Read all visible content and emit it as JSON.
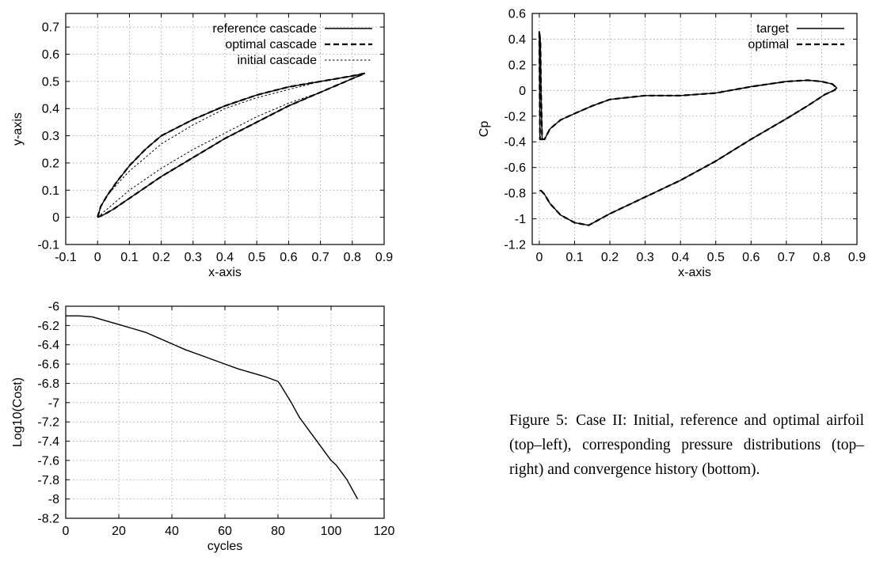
{
  "caption": {
    "label": "Figure 5:",
    "text": "Case II: Initial, reference and optimal airfoil (top–left), corresponding pressure distributions (top–right) and convergence history (bottom)."
  },
  "chart_data": [
    {
      "type": "line",
      "xlabel": "x-axis",
      "ylabel": "y-axis",
      "xlim": [
        -0.1,
        0.9
      ],
      "ylim": [
        -0.1,
        0.75
      ],
      "xticks": [
        "-0.1",
        "0",
        "0.1",
        "0.2",
        "0.3",
        "0.4",
        "0.5",
        "0.6",
        "0.7",
        "0.8",
        "0.9"
      ],
      "yticks": [
        "-0.1",
        "0",
        "0.1",
        "0.2",
        "0.3",
        "0.4",
        "0.5",
        "0.6",
        "0.7"
      ],
      "grid": true,
      "legend": "top-right",
      "series": [
        {
          "name": "reference cascade",
          "style": "solid",
          "upper": {
            "x": [
              0,
              0.01,
              0.03,
              0.06,
              0.1,
              0.15,
              0.2,
              0.3,
              0.4,
              0.5,
              0.6,
              0.7,
              0.8,
              0.84
            ],
            "y": [
              0,
              0.04,
              0.08,
              0.13,
              0.19,
              0.25,
              0.3,
              0.36,
              0.41,
              0.45,
              0.48,
              0.5,
              0.52,
              0.53
            ]
          },
          "lower": {
            "x": [
              0,
              0.02,
              0.05,
              0.1,
              0.15,
              0.2,
              0.3,
              0.4,
              0.5,
              0.6,
              0.7,
              0.8,
              0.84
            ],
            "y": [
              0,
              0.01,
              0.03,
              0.07,
              0.11,
              0.15,
              0.22,
              0.29,
              0.35,
              0.41,
              0.46,
              0.51,
              0.53
            ]
          }
        },
        {
          "name": "optimal  cascade",
          "style": "dashed",
          "upper": {
            "x": [
              0,
              0.01,
              0.03,
              0.06,
              0.1,
              0.15,
              0.2,
              0.3,
              0.4,
              0.5,
              0.6,
              0.7,
              0.8,
              0.84
            ],
            "y": [
              0,
              0.04,
              0.08,
              0.13,
              0.19,
              0.25,
              0.3,
              0.36,
              0.41,
              0.45,
              0.48,
              0.5,
              0.52,
              0.53
            ]
          },
          "lower": {
            "x": [
              0,
              0.02,
              0.05,
              0.1,
              0.15,
              0.2,
              0.3,
              0.4,
              0.5,
              0.6,
              0.7,
              0.8,
              0.84
            ],
            "y": [
              0,
              0.01,
              0.03,
              0.07,
              0.11,
              0.15,
              0.22,
              0.29,
              0.35,
              0.41,
              0.46,
              0.51,
              0.53
            ]
          }
        },
        {
          "name": "initial  cascade",
          "style": "dotted",
          "upper": {
            "x": [
              0,
              0.01,
              0.03,
              0.06,
              0.1,
              0.15,
              0.2,
              0.3,
              0.4,
              0.5,
              0.6,
              0.7,
              0.8,
              0.84
            ],
            "y": [
              0,
              0.04,
              0.08,
              0.12,
              0.17,
              0.22,
              0.27,
              0.34,
              0.4,
              0.44,
              0.47,
              0.5,
              0.52,
              0.53
            ]
          },
          "lower": {
            "x": [
              0,
              0.02,
              0.05,
              0.1,
              0.15,
              0.2,
              0.3,
              0.4,
              0.5,
              0.6,
              0.7,
              0.8,
              0.84
            ],
            "y": [
              0,
              0.02,
              0.05,
              0.1,
              0.14,
              0.18,
              0.25,
              0.31,
              0.37,
              0.42,
              0.46,
              0.51,
              0.53
            ]
          }
        }
      ]
    },
    {
      "type": "line",
      "xlabel": "x-axis",
      "ylabel": "Cp",
      "xlim": [
        -0.02,
        0.9
      ],
      "ylim": [
        -1.2,
        0.6
      ],
      "xticks": [
        "0",
        "0.1",
        "0.2",
        "0.3",
        "0.4",
        "0.5",
        "0.6",
        "0.7",
        "0.8",
        "0.9"
      ],
      "yticks": [
        "-1.2",
        "-1",
        "-0.8",
        "-0.6",
        "-0.4",
        "-0.2",
        "0",
        "0.2",
        "0.4",
        "0.6"
      ],
      "grid": true,
      "legend": "top-right",
      "series": [
        {
          "name": "target",
          "style": "solid",
          "x": [
            0.01,
            0.002,
            0.0,
            0.003,
            0.005,
            0.008,
            0.015,
            0.03,
            0.06,
            0.1,
            0.15,
            0.2,
            0.3,
            0.4,
            0.5,
            0.6,
            0.7,
            0.76,
            0.8,
            0.83,
            0.843,
            0.835,
            0.81,
            0.76,
            0.7,
            0.6,
            0.5,
            0.4,
            0.3,
            0.2,
            0.14,
            0.1,
            0.06,
            0.03,
            0.015,
            0.005,
            0.0
          ],
          "y": [
            -0.38,
            -0.38,
            0.46,
            0.38,
            0.0,
            -0.38,
            -0.38,
            -0.3,
            -0.23,
            -0.18,
            -0.12,
            -0.07,
            -0.04,
            -0.04,
            -0.02,
            0.03,
            0.07,
            0.08,
            0.07,
            0.05,
            0.02,
            0.0,
            -0.03,
            -0.12,
            -0.22,
            -0.38,
            -0.55,
            -0.7,
            -0.83,
            -0.96,
            -1.05,
            -1.03,
            -0.97,
            -0.88,
            -0.81,
            -0.78,
            -0.78
          ]
        },
        {
          "name": "optimal",
          "style": "dashed",
          "x": [
            0.01,
            0.002,
            0.0,
            0.003,
            0.005,
            0.008,
            0.015,
            0.03,
            0.06,
            0.1,
            0.15,
            0.2,
            0.3,
            0.4,
            0.5,
            0.6,
            0.7,
            0.76,
            0.8,
            0.83,
            0.843,
            0.835,
            0.81,
            0.76,
            0.7,
            0.6,
            0.5,
            0.4,
            0.3,
            0.2,
            0.14,
            0.1,
            0.06,
            0.03,
            0.015,
            0.005,
            0.0
          ],
          "y": [
            -0.38,
            -0.38,
            0.46,
            0.38,
            0.0,
            -0.38,
            -0.38,
            -0.3,
            -0.23,
            -0.18,
            -0.12,
            -0.07,
            -0.04,
            -0.04,
            -0.02,
            0.03,
            0.07,
            0.08,
            0.07,
            0.05,
            0.02,
            0.0,
            -0.03,
            -0.12,
            -0.22,
            -0.38,
            -0.55,
            -0.7,
            -0.83,
            -0.96,
            -1.05,
            -1.03,
            -0.97,
            -0.88,
            -0.81,
            -0.78,
            -0.78
          ]
        }
      ]
    },
    {
      "type": "line",
      "xlabel": "cycles",
      "ylabel": "Log10(Cost)",
      "xlim": [
        0,
        120
      ],
      "ylim": [
        -8.2,
        -6
      ],
      "xticks": [
        "0",
        "20",
        "40",
        "60",
        "80",
        "100",
        "120"
      ],
      "yticks": [
        "-8.2",
        "-8",
        "-7.8",
        "-7.6",
        "-7.4",
        "-7.2",
        "-7",
        "-6.8",
        "-6.6",
        "-6.4",
        "-6.2",
        "-6"
      ],
      "grid": true,
      "series": [
        {
          "style": "solid",
          "x": [
            0,
            5,
            10,
            15,
            20,
            25,
            30,
            35,
            40,
            45,
            50,
            55,
            60,
            65,
            70,
            75,
            80,
            81,
            85,
            88,
            92,
            96,
            100,
            102,
            106,
            110
          ],
          "y": [
            -6.1,
            -6.1,
            -6.11,
            -6.15,
            -6.19,
            -6.23,
            -6.27,
            -6.33,
            -6.39,
            -6.45,
            -6.5,
            -6.55,
            -6.6,
            -6.65,
            -6.69,
            -6.73,
            -6.78,
            -6.82,
            -7.0,
            -7.15,
            -7.3,
            -7.45,
            -7.6,
            -7.65,
            -7.8,
            -8.0
          ]
        }
      ]
    }
  ]
}
